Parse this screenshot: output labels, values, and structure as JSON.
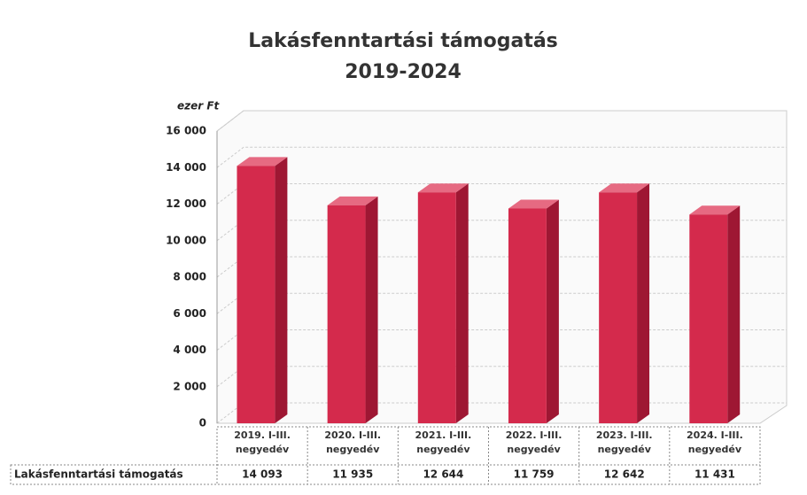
{
  "chart_data": {
    "type": "bar",
    "title": "Lakásfenntartási támogatás",
    "subtitle": "2019-2024",
    "y_label": "ezer Ft",
    "categories": [
      "2019. I-III. negyedév",
      "2020. I-III. negyedév",
      "2021. I-III. negyedév",
      "2022. I-III. negyedév",
      "2023. I-III. negyedév",
      "2024. I-III. negyedév"
    ],
    "series": [
      {
        "name": "Lakásfenntartási támogatás",
        "color": "#d42a4c",
        "values": [
          14093,
          11935,
          12644,
          11759,
          12642,
          11431
        ],
        "value_labels": [
          "14 093",
          "11 935",
          "12 644",
          "11 759",
          "12 642",
          "11 431"
        ]
      }
    ],
    "ylim": [
      0,
      16000
    ],
    "yticks": [
      {
        "value": 0,
        "label": "0"
      },
      {
        "value": 2000,
        "label": "2 000"
      },
      {
        "value": 4000,
        "label": "4 000"
      },
      {
        "value": 6000,
        "label": "6 000"
      },
      {
        "value": 8000,
        "label": "8 000"
      },
      {
        "value": 10000,
        "label": "10 000"
      },
      {
        "value": 12000,
        "label": "12 000"
      },
      {
        "value": 14000,
        "label": "14 000"
      },
      {
        "value": 16000,
        "label": "16 000"
      }
    ],
    "grid": true
  }
}
